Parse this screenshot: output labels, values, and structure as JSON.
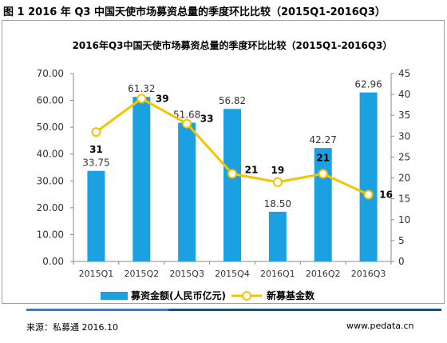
{
  "figure": {
    "title": "图 1 2016 年 Q3 中国天使市场募资总量的季度环比比较（2015Q1-2016Q3）",
    "source": "来源：私募通 2016.10",
    "website": "www.pedata.cn"
  },
  "colors": {
    "bar": "#1ba1e2",
    "line": "#f5c400",
    "bottom_line": "#1f4e79",
    "bottom_accent": "#4a7ab5"
  },
  "chart_data": {
    "type": "bar",
    "title": "2016年Q3中国天使市场募资总量的季度环比比较（2015Q1-2016Q3）",
    "categories": [
      "2015Q1",
      "2015Q2",
      "2015Q3",
      "2015Q4",
      "2016Q1",
      "2016Q2",
      "2016Q3"
    ],
    "series": [
      {
        "name": "募资金额(人民币亿元)",
        "type": "bar",
        "axis": "left",
        "values": [
          33.75,
          61.32,
          51.68,
          56.82,
          18.5,
          42.27,
          62.96
        ],
        "labels": [
          "33.75",
          "61.32",
          "51.68",
          "56.82",
          "18.50",
          "42.27",
          "62.96"
        ]
      },
      {
        "name": "新募基金数",
        "type": "line",
        "axis": "right",
        "values": [
          31,
          39,
          33,
          21,
          19,
          21,
          16
        ],
        "labels": [
          "31",
          "39",
          "33",
          "21",
          "19",
          "21",
          "16"
        ]
      }
    ],
    "y_left": {
      "min": 0,
      "max": 70,
      "step": 10,
      "ticks": [
        "0.00",
        "10.00",
        "20.00",
        "30.00",
        "40.00",
        "50.00",
        "60.00",
        "70.00"
      ]
    },
    "y_right": {
      "min": 0,
      "max": 45,
      "step": 5,
      "ticks": [
        "0",
        "5",
        "10",
        "15",
        "20",
        "25",
        "30",
        "35",
        "40",
        "45"
      ]
    },
    "grid": false,
    "legend_position": "bottom"
  }
}
